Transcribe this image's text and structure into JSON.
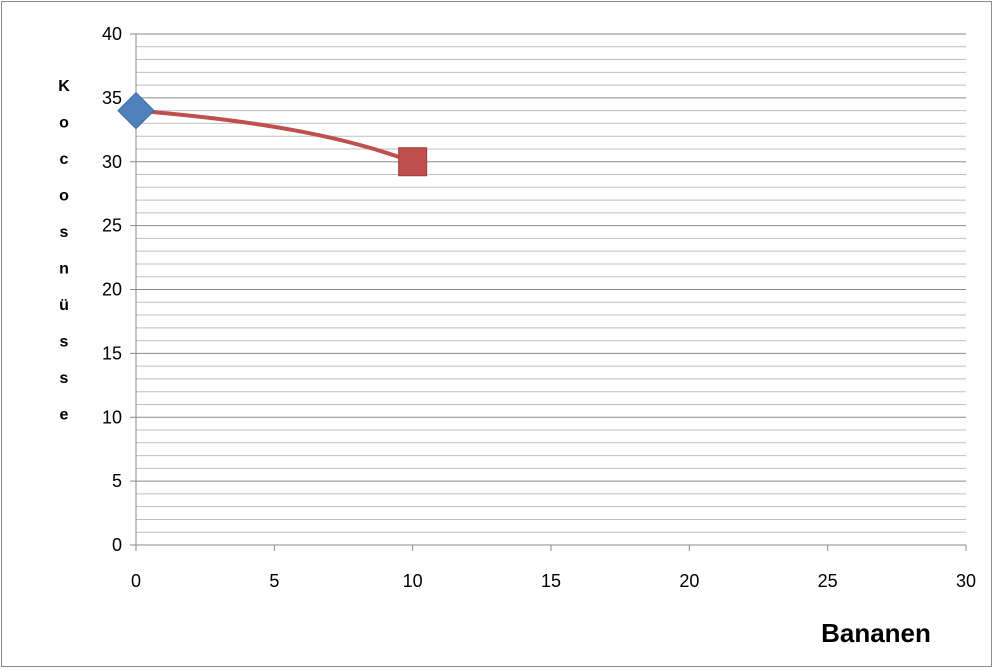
{
  "chart_data": {
    "type": "line",
    "title": "",
    "xlabel": "Bananen",
    "ylabel": "Kocosnüsse",
    "xlim": [
      0,
      30
    ],
    "ylim": [
      0,
      40
    ],
    "x_ticks": [
      "0",
      "5",
      "10",
      "15",
      "20",
      "25",
      "30"
    ],
    "y_ticks": [
      "0",
      "5",
      "10",
      "15",
      "20",
      "25",
      "30",
      "35",
      "40"
    ],
    "grid": "horizontal major and minor",
    "line_color": "#c0504d",
    "series": [
      {
        "points": [
          {
            "x": 0,
            "y": 34,
            "marker": "diamond",
            "color": "#4f81bd"
          },
          {
            "x": 10,
            "y": 30,
            "marker": "square",
            "color": "#c0504d"
          }
        ]
      }
    ]
  }
}
